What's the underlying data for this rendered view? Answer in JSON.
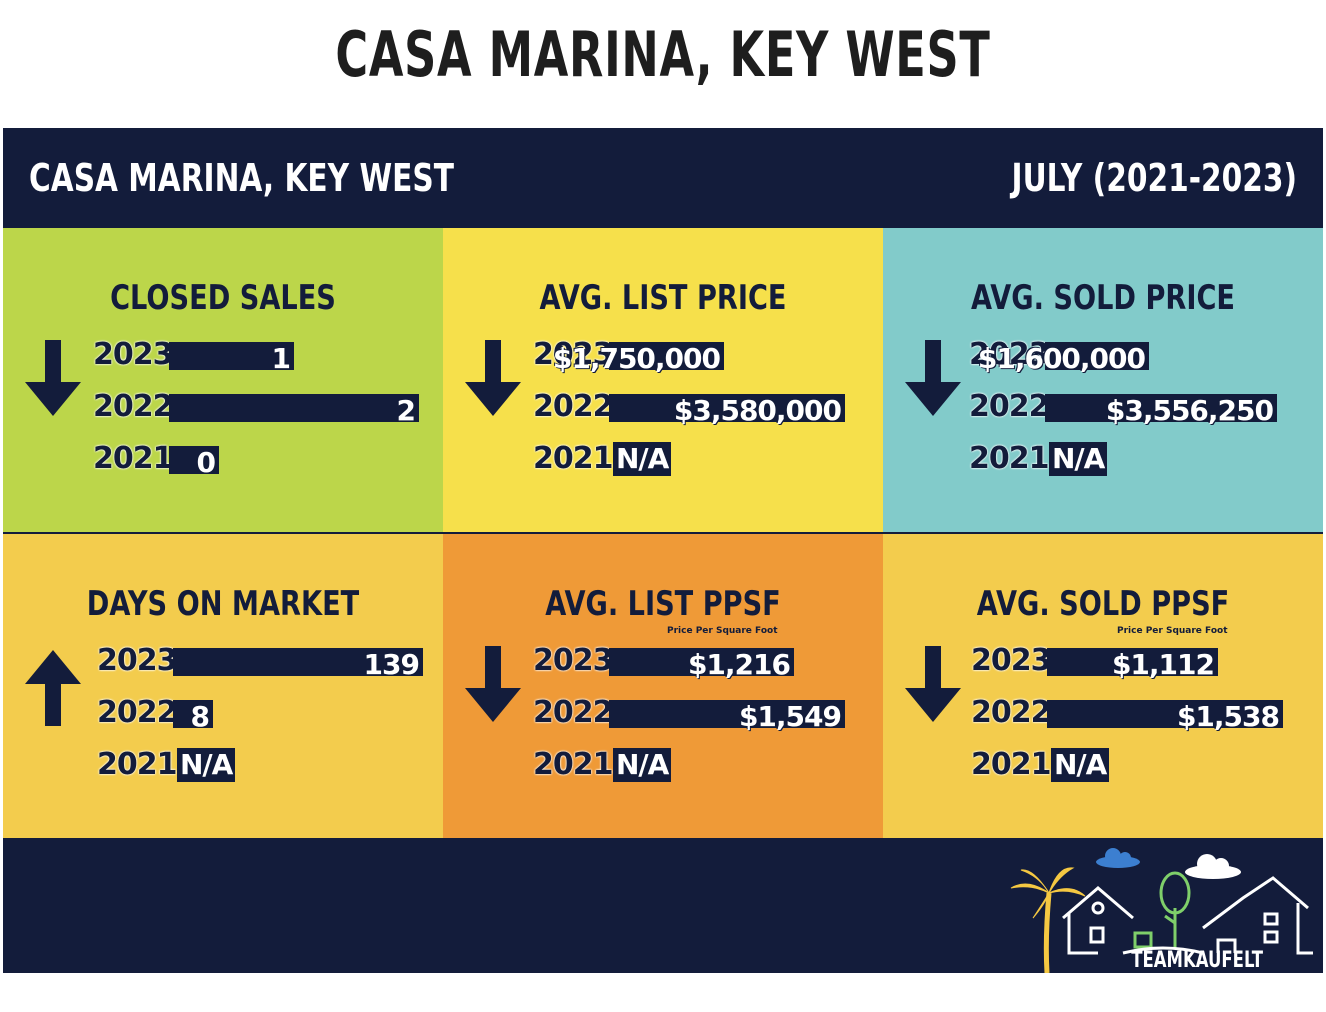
{
  "page_title": "CASA MARINA, KEY WEST",
  "infographic": {
    "title": "CASA MARINA, KEY WEST",
    "date_range": "JULY (2021-2023)",
    "brand": "TEAMKAUFELT"
  },
  "colors": {
    "navy": "#131c3b",
    "green": "#bcd64a",
    "yellow": "#f6e04b",
    "teal": "#82cbca",
    "mustard": "#f3cc4d",
    "orange": "#ef9a37",
    "palm": "#f5c842",
    "cloud_blue": "#3c7fd0"
  },
  "chart_data": [
    {
      "type": "bar",
      "title": "CLOSED SALES",
      "trend": "down",
      "categories": [
        "2023",
        "2022",
        "2021"
      ],
      "values": [
        1,
        2,
        0
      ],
      "labels": [
        "1",
        "2",
        "0"
      ]
    },
    {
      "type": "bar",
      "title": "AVG. LIST PRICE",
      "trend": "down",
      "categories": [
        "2023",
        "2022",
        "2021"
      ],
      "values": [
        1750000,
        3580000,
        null
      ],
      "labels": [
        "$1,750,000",
        "$3,580,000",
        "N/A"
      ]
    },
    {
      "type": "bar",
      "title": "AVG. SOLD PRICE",
      "trend": "down",
      "categories": [
        "2023",
        "2022",
        "2021"
      ],
      "values": [
        1600000,
        3556250,
        null
      ],
      "labels": [
        "$1,600,000",
        "$3,556,250",
        "N/A"
      ]
    },
    {
      "type": "bar",
      "title": "DAYS ON MARKET",
      "trend": "up",
      "categories": [
        "2023",
        "2022",
        "2021"
      ],
      "values": [
        139,
        8,
        null
      ],
      "labels": [
        "139",
        "8",
        "N/A"
      ]
    },
    {
      "type": "bar",
      "title": "AVG. LIST PPSF",
      "subtitle": "Price Per Square Foot",
      "trend": "down",
      "categories": [
        "2023",
        "2022",
        "2021"
      ],
      "values": [
        1216,
        1549,
        null
      ],
      "labels": [
        "$1,216",
        "$1,549",
        "N/A"
      ]
    },
    {
      "type": "bar",
      "title": "AVG. SOLD PPSF",
      "subtitle": "Price Per Square Foot",
      "trend": "down",
      "categories": [
        "2023",
        "2022",
        "2021"
      ],
      "values": [
        1112,
        1538,
        null
      ],
      "labels": [
        "$1,112",
        "$1,538",
        "N/A"
      ]
    }
  ]
}
